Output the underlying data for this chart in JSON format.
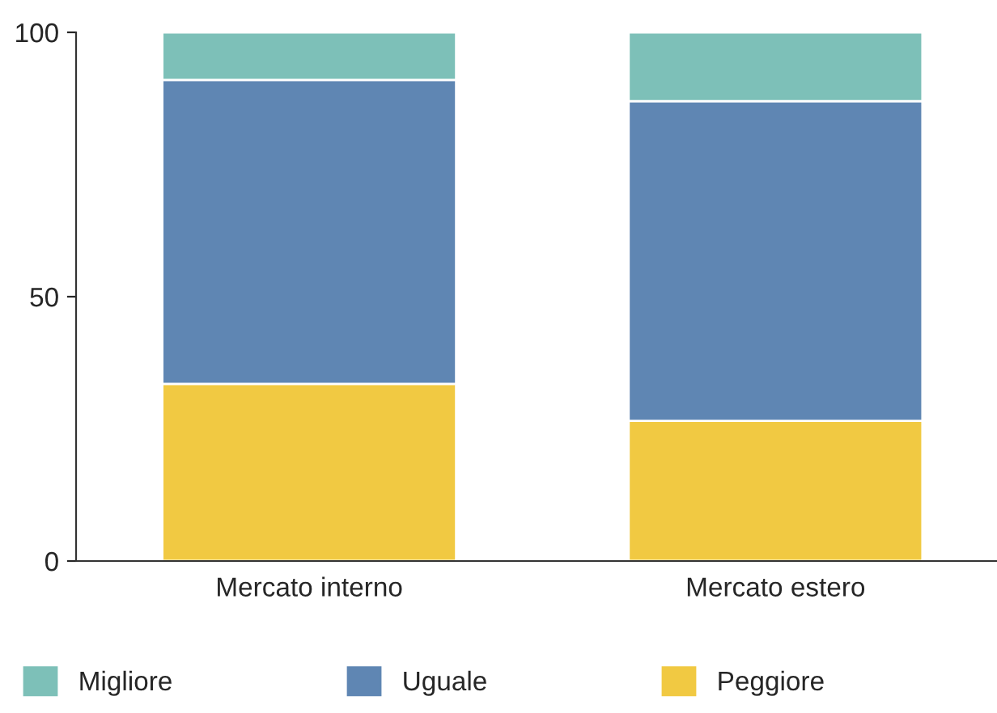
{
  "chart_data": {
    "type": "bar",
    "stacked": true,
    "categories": [
      "Mercato interno",
      "Mercato estero"
    ],
    "series": [
      {
        "name": "Peggiore",
        "color": "#f1c942",
        "values": [
          33.5,
          26.5
        ]
      },
      {
        "name": "Uguale",
        "color": "#5f86b3",
        "values": [
          57.5,
          60.5
        ]
      },
      {
        "name": "Migliore",
        "color": "#7dc0b8",
        "values": [
          9,
          13
        ]
      }
    ],
    "ylim": [
      0,
      100
    ],
    "yticks": [
      0,
      50,
      100
    ],
    "grid": false,
    "legend": "bottom left"
  }
}
